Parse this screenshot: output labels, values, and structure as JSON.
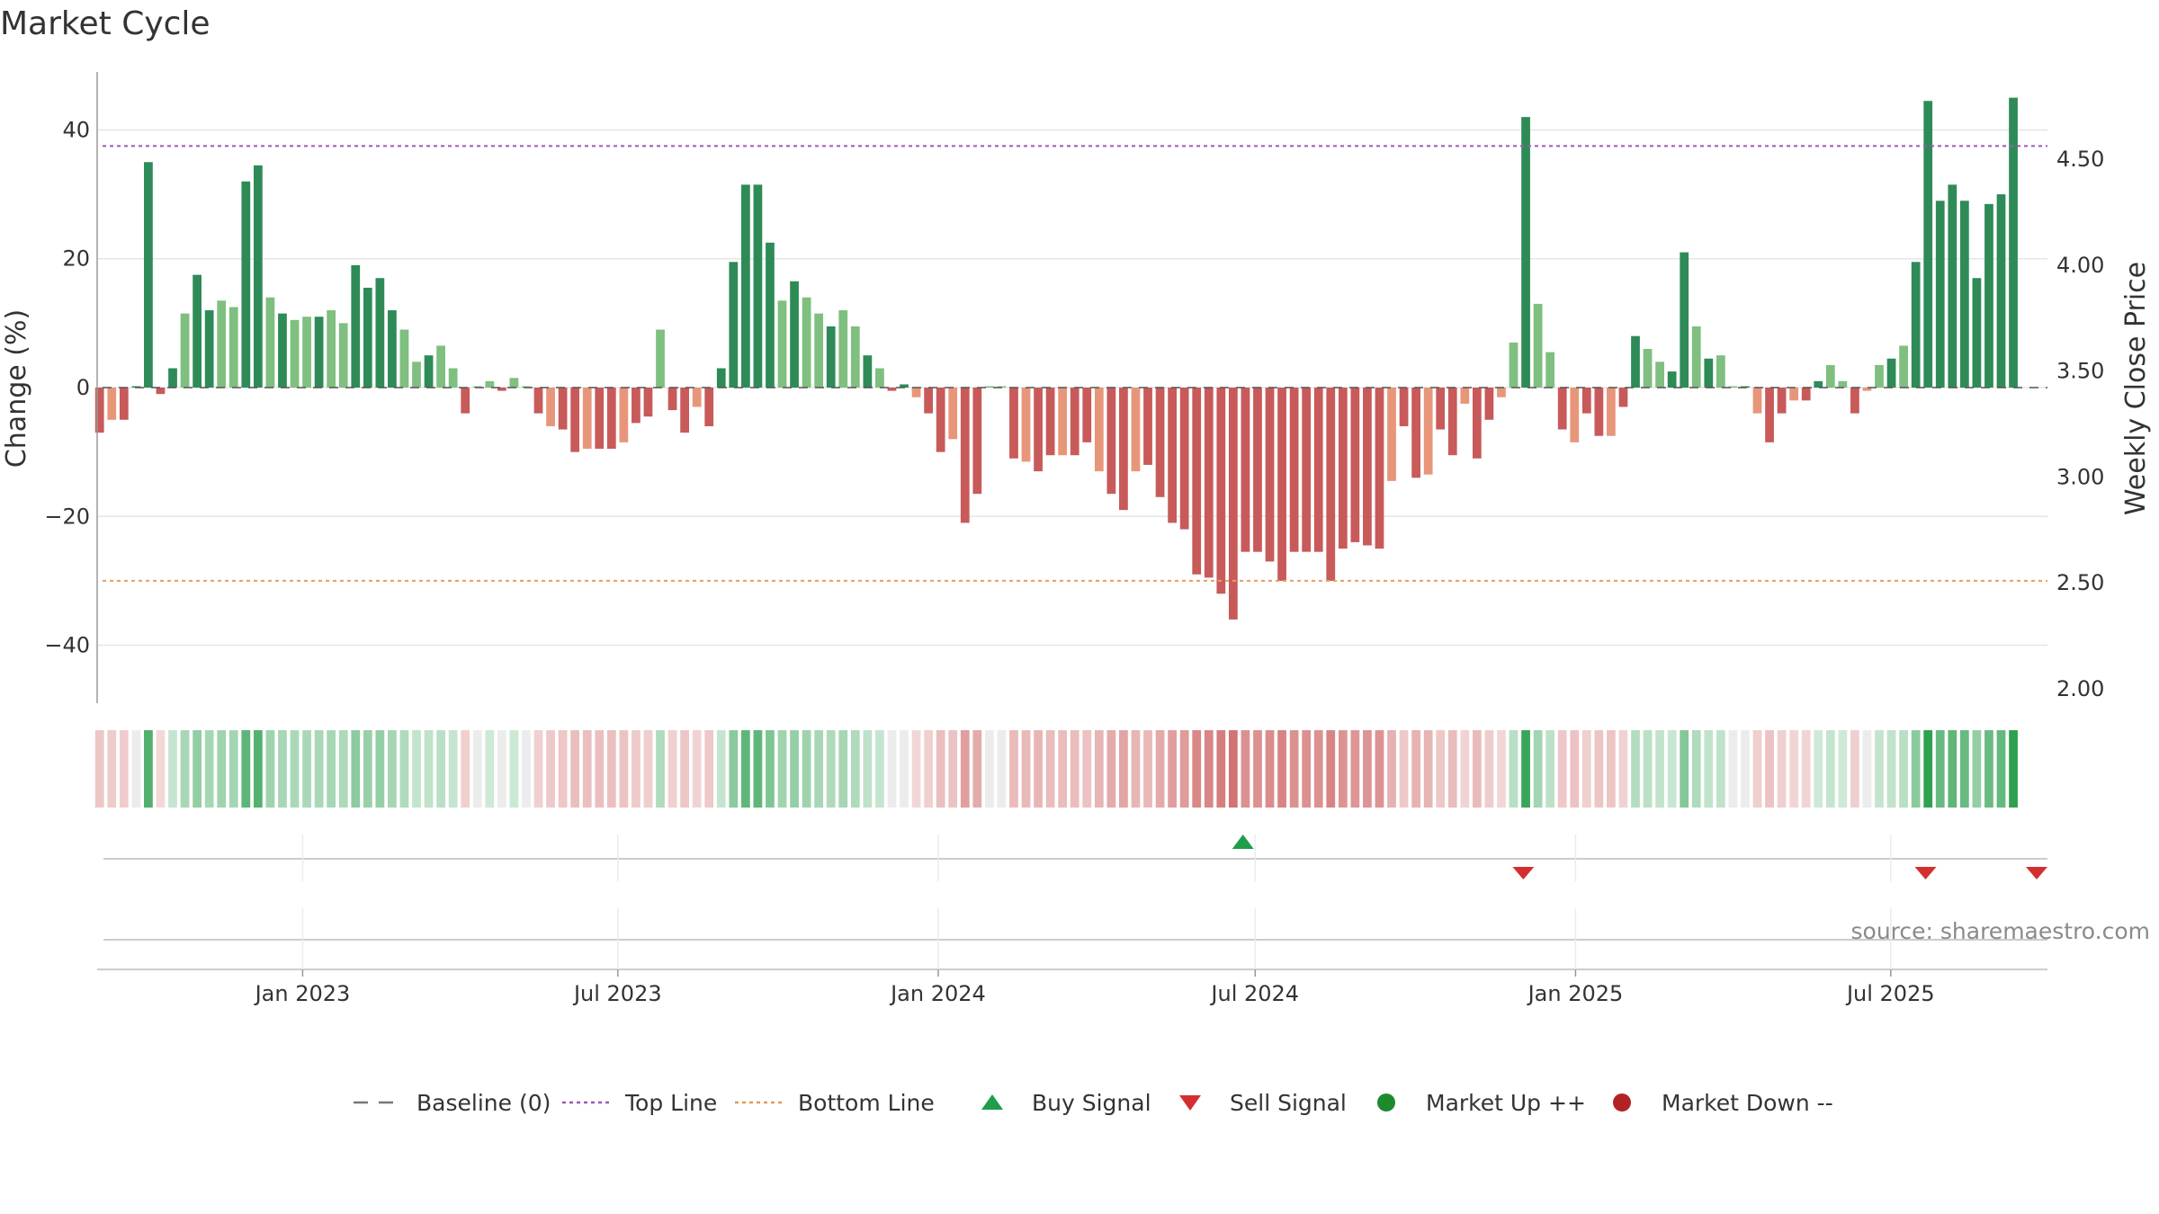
{
  "chart_data": {
    "type": "bar",
    "title": "Market Cycle",
    "ylabel_left": "Change (%)",
    "ylabel_right": "Weekly Close Price",
    "ylim_left": [
      -49,
      49
    ],
    "ylim_right": [
      2.0,
      4.7
    ],
    "yticks_left": [
      {
        "v": 40,
        "label": "40"
      },
      {
        "v": 20,
        "label": "20"
      },
      {
        "v": 0,
        "label": "0"
      },
      {
        "v": -20,
        "label": "−20"
      },
      {
        "v": -40,
        "label": "−40"
      }
    ],
    "yticks_right": [
      {
        "v": 4.5,
        "label": "4.50"
      },
      {
        "v": 4.0,
        "label": "4.00"
      },
      {
        "v": 3.5,
        "label": "3.50"
      },
      {
        "v": 3.0,
        "label": "3.00"
      },
      {
        "v": 2.5,
        "label": "2.50"
      },
      {
        "v": 2.0,
        "label": "2.00"
      }
    ],
    "x_start": "2022-09-05",
    "x_end": "2025-09-29",
    "xticks": [
      {
        "date": "2023-01-01",
        "label": "Jan 2023"
      },
      {
        "date": "2023-07-01",
        "label": "Jul 2023"
      },
      {
        "date": "2024-01-01",
        "label": "Jan 2024"
      },
      {
        "date": "2024-07-01",
        "label": "Jul 2024"
      },
      {
        "date": "2025-01-01",
        "label": "Jan 2025"
      },
      {
        "date": "2025-07-01",
        "label": "Jul 2025"
      }
    ],
    "week_start": "2022-09-05",
    "top_line": 37.5,
    "bottom_line": -30,
    "values": [
      -7,
      -5,
      -5,
      0,
      35,
      -1,
      3,
      11.5,
      17.5,
      12,
      13.5,
      12.5,
      32,
      34.5,
      14,
      11.5,
      10.5,
      11,
      11,
      12,
      10,
      19,
      15.5,
      17,
      12,
      9,
      4,
      5,
      6.5,
      3,
      -4,
      0,
      1,
      -0.5,
      1.5,
      0,
      -4,
      -6,
      -6.5,
      -10,
      -9.5,
      -9.5,
      -9.5,
      -8.5,
      -5.5,
      -4.5,
      9,
      -3.5,
      -7,
      -3,
      -6,
      3,
      19.5,
      31.5,
      31.5,
      22.5,
      13.5,
      16.5,
      14,
      11.5,
      9.5,
      12,
      9.5,
      5,
      3,
      -0.5,
      0.5,
      -1.5,
      -4,
      -10,
      -8,
      -21,
      -16.5,
      0,
      0,
      -11,
      -11.5,
      -13,
      -10.5,
      -10.5,
      -10.5,
      -8.5,
      -13,
      -16.5,
      -19,
      -13,
      -12,
      -17,
      -21,
      -22,
      -29,
      -29.5,
      -32,
      -36,
      -25.5,
      -25.5,
      -27,
      -30,
      -25.5,
      -25.5,
      -25.5,
      -30,
      -25,
      -24,
      -24.5,
      -25,
      -14.5,
      -6,
      -14,
      -13.5,
      -6.5,
      -10.5,
      -2.5,
      -11,
      -5,
      -1.5,
      7,
      42,
      13,
      5.5,
      -6.5,
      -8.5,
      -4,
      -7.5,
      -7.5,
      -3,
      8,
      6,
      4,
      2.5,
      21,
      9.5,
      4.5,
      5,
      0,
      0,
      -4,
      -8.5,
      -4,
      -2,
      -2,
      1,
      3.5,
      1,
      -4,
      -0.5,
      3.5,
      4.5,
      6.5,
      19.5,
      44.5,
      29,
      31.5,
      29,
      17,
      28.5,
      30,
      45
    ],
    "signals": {
      "buy": [
        "2024-06-24"
      ],
      "sell": [
        "2024-12-02",
        "2025-07-21",
        "2025-09-29"
      ]
    },
    "legend": [
      {
        "label": "Baseline (0)",
        "type": "dash",
        "color": "#777777"
      },
      {
        "label": "Top Line",
        "type": "dot",
        "color": "#9b59b6"
      },
      {
        "label": "Bottom Line",
        "type": "dot",
        "color": "#e39a56"
      },
      {
        "label": "Buy Signal",
        "type": "triangle-up",
        "color": "#1e9e4a"
      },
      {
        "label": "Sell Signal",
        "type": "triangle-down",
        "color": "#d32f2f"
      },
      {
        "label": "Market Up ++",
        "type": "circle",
        "color": "#1e8a2e"
      },
      {
        "label": "Market Down --",
        "type": "circle",
        "color": "#b22222"
      }
    ],
    "legend_position": "bottom",
    "grid": true,
    "source": "source: sharemaestro.com",
    "colors": {
      "up_strong": "#2e8b57",
      "up_light": "#7fbf7f",
      "down_strong": "#c85a5a",
      "down_light": "#e8967a"
    }
  }
}
